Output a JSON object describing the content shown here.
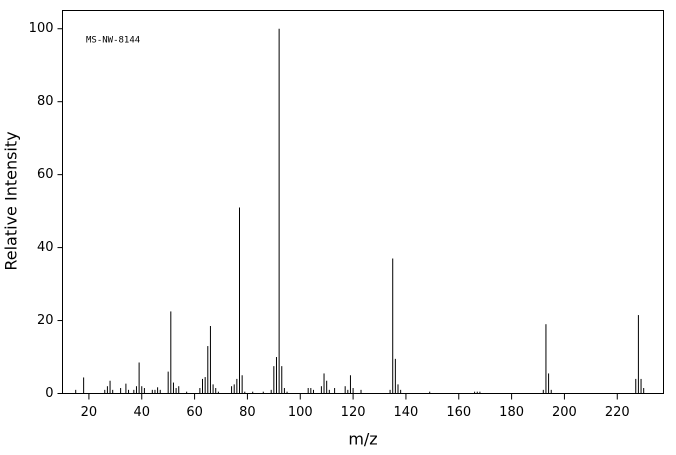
{
  "chart_data": {
    "type": "stem",
    "annotation": "MS-NW-8144",
    "xlabel": "m/z",
    "ylabel": "Relative Intensity",
    "x": [
      15,
      18,
      26,
      27,
      28,
      29,
      32,
      34,
      35,
      37,
      38,
      39,
      40,
      41,
      44,
      45,
      46,
      47,
      50,
      51,
      52,
      53,
      54,
      57,
      62,
      63,
      64,
      65,
      66,
      67,
      68,
      69,
      74,
      75,
      76,
      77,
      78,
      79,
      82,
      86,
      89,
      90,
      91,
      92,
      93,
      94,
      95,
      103,
      104,
      105,
      108,
      109,
      110,
      111,
      113,
      117,
      118,
      119,
      120,
      123,
      134,
      135,
      136,
      137,
      138,
      149,
      166,
      167,
      168,
      192,
      193,
      194,
      195,
      227,
      228,
      229,
      230
    ],
    "values": [
      1,
      4.4,
      1,
      2,
      3.5,
      1,
      1.5,
      2.7,
      1,
      1,
      2,
      8.5,
      2,
      1.5,
      1,
      1,
      1.7,
      1,
      6,
      22.5,
      3,
      1.5,
      2,
      0.5,
      1.5,
      4,
      4.5,
      13,
      18.5,
      2.5,
      1.5,
      0.5,
      2,
      2.5,
      4,
      51,
      5,
      0.5,
      0.5,
      0.5,
      1,
      7.5,
      10,
      100,
      7.5,
      1.5,
      0.5,
      1.5,
      1.5,
      1,
      2,
      5.5,
      3.5,
      1,
      1.5,
      2,
      1,
      5,
      1.5,
      1,
      1,
      37,
      9.5,
      2.5,
      1,
      0.5,
      0.5,
      0.5,
      0.5,
      1,
      19,
      5.5,
      1,
      4,
      21.5,
      4,
      1.5
    ],
    "color": "#000000",
    "xlim": [
      10,
      237.5
    ],
    "ylim": [
      0,
      105
    ],
    "xticks": [
      20,
      40,
      60,
      80,
      100,
      120,
      140,
      160,
      180,
      200,
      220
    ],
    "yticks": [
      0,
      20,
      40,
      60,
      80,
      100
    ]
  }
}
